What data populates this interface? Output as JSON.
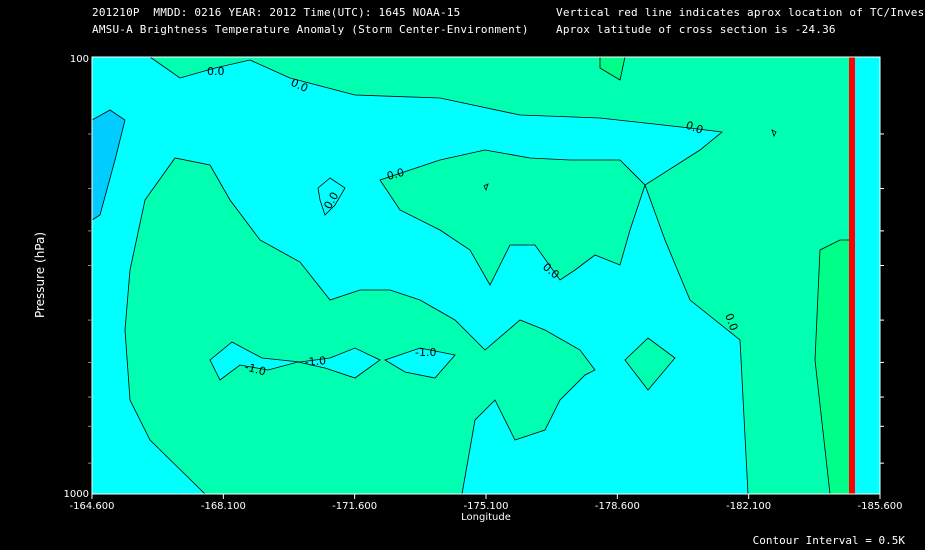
{
  "header": {
    "line1_left": "201210P  MMDD: 0216 YEAR: 2012 Time(UTC): 1645 NOAA-15",
    "line2_left": "AMSU-A Brightness Temperature Anomaly (Storm Center-Environment)",
    "line1_right": "Vertical red line indicates aprox location of TC/Invest",
    "line2_right": "Aprox latitude of cross section is -24.36"
  },
  "footer": {
    "contour_interval": "Contour Interval = 0.5K"
  },
  "chart_data": {
    "type": "contour",
    "xlabel": "Longitude",
    "ylabel": "Pressure (hPa)",
    "xlim": [
      -164.6,
      -185.6
    ],
    "ylim": [
      1000,
      100
    ],
    "yscale": "log",
    "x_ticks": [
      "-164.600",
      "-168.100",
      "-171.600",
      "-175.100",
      "-178.600",
      "-182.100",
      "-185.600"
    ],
    "y_ticks": [
      "100",
      "1000"
    ],
    "y_minor_ticks": [
      150,
      200,
      250,
      300,
      400,
      500,
      600,
      700,
      850
    ],
    "tc_longitude": -185.2,
    "tc_line_color": "#ff0000",
    "contour_labels": [
      "0.0",
      "0.0",
      "0.0",
      "0.0",
      "0.0",
      "0.0",
      "0.0",
      "-1.0",
      "-1.0",
      "-1.0"
    ],
    "colors": {
      "below_-1.0": "#00ccff",
      "-1.0_to_-0.5": "#00ffff",
      "-0.5_to_0.0": "#00ffff",
      "0.0_to_0.5": "#00ffb0",
      "0.5_to_1.0": "#00ff90"
    }
  }
}
